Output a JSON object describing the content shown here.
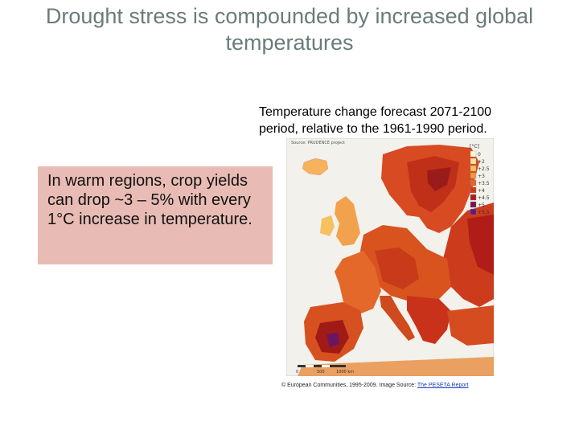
{
  "slide": {
    "title": "Drought stress is compounded by increased global temperatures"
  },
  "figure": {
    "caption": "Temperature change forecast 2071-2100 period, relative to the 1961-1990 period.",
    "map_source_label": "Source: PRUDENCE project",
    "legend_unit": "[°C]",
    "legend_labels": [
      "0",
      "+2",
      "+2.5",
      "+3",
      "+3.5",
      "+4",
      "+4.5",
      "+5",
      "+5.5"
    ],
    "legend_colors": [
      "#fff8d8",
      "#fde39a",
      "#f7c060",
      "#f09840",
      "#e06828",
      "#cc3c1c",
      "#b01c18",
      "#7a1450",
      "#5a1a80"
    ],
    "scale_bar_labels": [
      "0",
      "500",
      "1000 km"
    ]
  },
  "callout": {
    "text": "In warm regions, crop yields can drop ~3 – 5% with every 1°C increase in temperature."
  },
  "credit": {
    "prefix": "© European Communities, 1995-2009. Image Source: ",
    "link_text": "The PESETA Report"
  }
}
